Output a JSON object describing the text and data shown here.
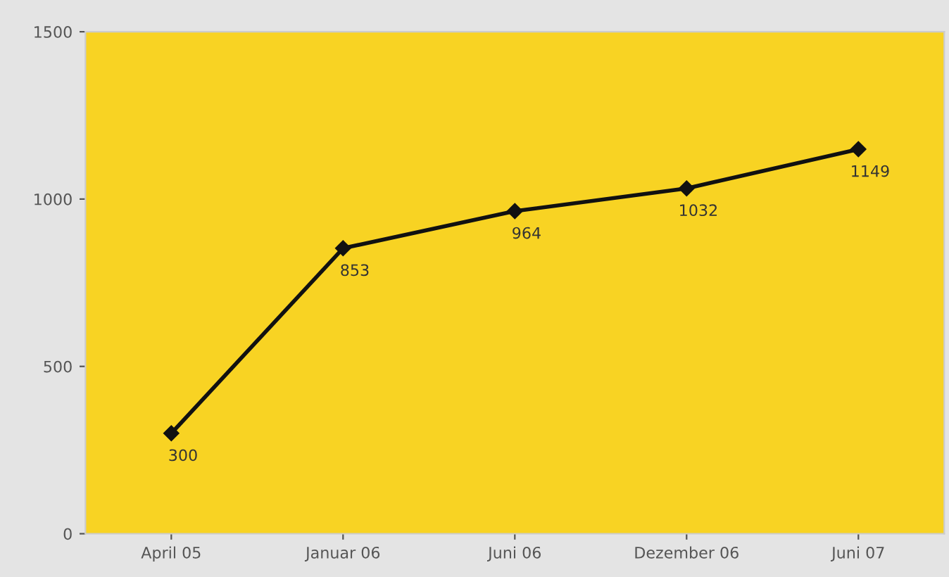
{
  "chart_data": {
    "type": "line",
    "categories": [
      "April 05",
      "Januar 06",
      "Juni 06",
      "Dezember 06",
      "Juni 07"
    ],
    "series": [
      {
        "color": "#111111",
        "values": [
          300,
          853,
          964,
          1032,
          1149
        ]
      }
    ],
    "ylim": [
      0,
      1500
    ],
    "yticks": [
      0,
      500,
      1000,
      1500
    ],
    "marker": "diamond",
    "line_style": "solid",
    "grid": false,
    "data_labels": true
  }
}
